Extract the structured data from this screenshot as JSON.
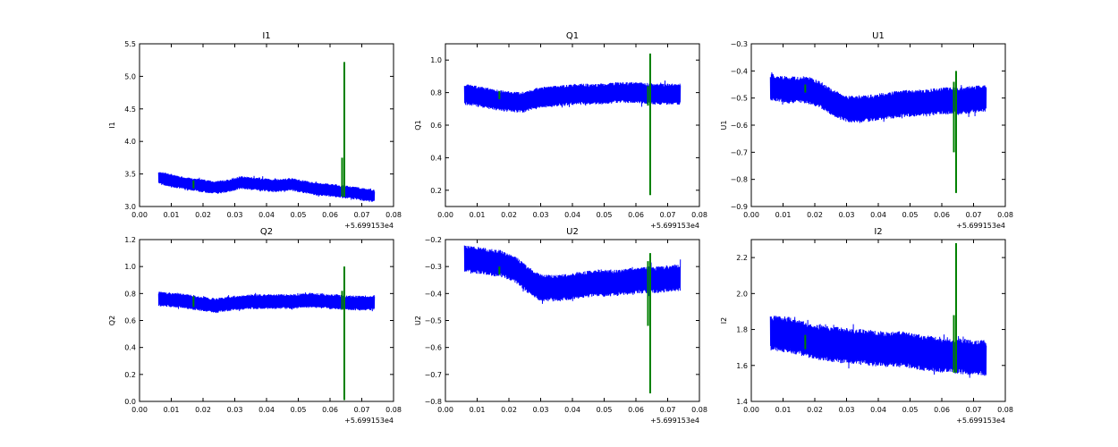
{
  "figure": {
    "background": "#ffffff",
    "signal_color": "#0000ff",
    "marker_color": "#008000",
    "x_offset_label": "+5.699153e4"
  },
  "chart_data": [
    {
      "type": "line",
      "title": "I1",
      "ylabel": "I1",
      "xlim": [
        0.0,
        0.08
      ],
      "ylim": [
        3.0,
        5.5
      ],
      "x_ticks": [
        "0.00",
        "0.01",
        "0.02",
        "0.03",
        "0.04",
        "0.05",
        "0.06",
        "0.07",
        "0.08"
      ],
      "y_ticks": [
        "3.0",
        "3.5",
        "4.0",
        "4.5",
        "5.0",
        "5.5"
      ],
      "x_offset": "+5.699153e4",
      "series": [
        {
          "color": "#0000ff",
          "x_range": [
            0.006,
            0.074
          ],
          "center": [
            [
              0.006,
              3.44
            ],
            [
              0.012,
              3.38
            ],
            [
              0.018,
              3.33
            ],
            [
              0.024,
              3.29
            ],
            [
              0.028,
              3.32
            ],
            [
              0.032,
              3.37
            ],
            [
              0.036,
              3.35
            ],
            [
              0.042,
              3.32
            ],
            [
              0.048,
              3.34
            ],
            [
              0.054,
              3.28
            ],
            [
              0.06,
              3.25
            ],
            [
              0.066,
              3.22
            ],
            [
              0.074,
              3.16
            ]
          ],
          "half_width": 0.1
        },
        {
          "color": "#008000",
          "markers": [
            {
              "x": 0.017,
              "y_min": 3.28,
              "y_max": 3.4
            },
            {
              "x": 0.0638,
              "y_min": 3.15,
              "y_max": 3.75
            },
            {
              "x": 0.0645,
              "y_min": 3.15,
              "y_max": 5.22
            }
          ]
        }
      ]
    },
    {
      "type": "line",
      "title": "Q1",
      "ylabel": "Q1",
      "xlim": [
        0.0,
        0.08
      ],
      "ylim": [
        0.1,
        1.1
      ],
      "x_ticks": [
        "0.00",
        "0.01",
        "0.02",
        "0.03",
        "0.04",
        "0.05",
        "0.06",
        "0.07",
        "0.08"
      ],
      "y_ticks": [
        "0.2",
        "0.4",
        "0.6",
        "0.8",
        "1.0"
      ],
      "x_offset": "+5.699153e4",
      "series": [
        {
          "color": "#0000ff",
          "x_range": [
            0.006,
            0.074
          ],
          "center": [
            [
              0.006,
              0.79
            ],
            [
              0.012,
              0.77
            ],
            [
              0.018,
              0.75
            ],
            [
              0.024,
              0.74
            ],
            [
              0.03,
              0.77
            ],
            [
              0.036,
              0.78
            ],
            [
              0.042,
              0.79
            ],
            [
              0.048,
              0.79
            ],
            [
              0.054,
              0.8
            ],
            [
              0.06,
              0.8
            ],
            [
              0.066,
              0.79
            ],
            [
              0.074,
              0.79
            ]
          ],
          "half_width": 0.065
        },
        {
          "color": "#008000",
          "markers": [
            {
              "x": 0.017,
              "y_min": 0.76,
              "y_max": 0.81
            },
            {
              "x": 0.0638,
              "y_min": 0.72,
              "y_max": 0.84
            },
            {
              "x": 0.0645,
              "y_min": 0.17,
              "y_max": 1.04
            }
          ]
        }
      ]
    },
    {
      "type": "line",
      "title": "U1",
      "ylabel": "U1",
      "xlim": [
        0.0,
        0.08
      ],
      "ylim": [
        -0.9,
        -0.3
      ],
      "x_ticks": [
        "0.00",
        "0.01",
        "0.02",
        "0.03",
        "0.04",
        "0.05",
        "0.06",
        "0.07",
        "0.08"
      ],
      "y_ticks": [
        "−0.9",
        "−0.8",
        "−0.7",
        "−0.6",
        "−0.5",
        "−0.4",
        "−0.3"
      ],
      "x_offset": "+5.699153e4",
      "series": [
        {
          "color": "#0000ff",
          "x_range": [
            0.006,
            0.074
          ],
          "center": [
            [
              0.006,
              -0.46
            ],
            [
              0.012,
              -0.47
            ],
            [
              0.018,
              -0.47
            ],
            [
              0.022,
              -0.49
            ],
            [
              0.026,
              -0.52
            ],
            [
              0.03,
              -0.54
            ],
            [
              0.036,
              -0.54
            ],
            [
              0.042,
              -0.53
            ],
            [
              0.048,
              -0.52
            ],
            [
              0.054,
              -0.52
            ],
            [
              0.06,
              -0.51
            ],
            [
              0.066,
              -0.51
            ],
            [
              0.074,
              -0.5
            ]
          ],
          "half_width": 0.05
        },
        {
          "color": "#008000",
          "markers": [
            {
              "x": 0.017,
              "y_min": -0.48,
              "y_max": -0.45
            },
            {
              "x": 0.0638,
              "y_min": -0.7,
              "y_max": -0.44
            },
            {
              "x": 0.0645,
              "y_min": -0.85,
              "y_max": -0.4
            }
          ]
        }
      ]
    },
    {
      "type": "line",
      "title": "Q2",
      "ylabel": "Q2",
      "xlim": [
        0.0,
        0.08
      ],
      "ylim": [
        0.0,
        1.2
      ],
      "x_ticks": [
        "0.00",
        "0.01",
        "0.02",
        "0.03",
        "0.04",
        "0.05",
        "0.06",
        "0.07",
        "0.08"
      ],
      "y_ticks": [
        "0.0",
        "0.2",
        "0.4",
        "0.6",
        "0.8",
        "1.0",
        "1.2"
      ],
      "x_offset": "+5.699153e4",
      "series": [
        {
          "color": "#0000ff",
          "x_range": [
            0.006,
            0.074
          ],
          "center": [
            [
              0.006,
              0.76
            ],
            [
              0.012,
              0.75
            ],
            [
              0.018,
              0.73
            ],
            [
              0.024,
              0.71
            ],
            [
              0.03,
              0.73
            ],
            [
              0.036,
              0.74
            ],
            [
              0.042,
              0.74
            ],
            [
              0.048,
              0.74
            ],
            [
              0.054,
              0.75
            ],
            [
              0.06,
              0.74
            ],
            [
              0.066,
              0.73
            ],
            [
              0.074,
              0.73
            ]
          ],
          "half_width": 0.055
        },
        {
          "color": "#008000",
          "markers": [
            {
              "x": 0.017,
              "y_min": 0.7,
              "y_max": 0.78
            },
            {
              "x": 0.0638,
              "y_min": 0.68,
              "y_max": 0.82
            },
            {
              "x": 0.0645,
              "y_min": 0.01,
              "y_max": 1.0
            }
          ]
        }
      ]
    },
    {
      "type": "line",
      "title": "U2",
      "ylabel": "U2",
      "xlim": [
        0.0,
        0.08
      ],
      "ylim": [
        -0.8,
        -0.2
      ],
      "x_ticks": [
        "0.00",
        "0.01",
        "0.02",
        "0.03",
        "0.04",
        "0.05",
        "0.06",
        "0.07",
        "0.08"
      ],
      "y_ticks": [
        "−0.8",
        "−0.7",
        "−0.6",
        "−0.5",
        "−0.4",
        "−0.3",
        "−0.2"
      ],
      "x_offset": "+5.699153e4",
      "series": [
        {
          "color": "#0000ff",
          "x_range": [
            0.006,
            0.074
          ],
          "center": [
            [
              0.006,
              -0.27
            ],
            [
              0.012,
              -0.28
            ],
            [
              0.018,
              -0.29
            ],
            [
              0.022,
              -0.31
            ],
            [
              0.026,
              -0.35
            ],
            [
              0.03,
              -0.38
            ],
            [
              0.036,
              -0.38
            ],
            [
              0.042,
              -0.37
            ],
            [
              0.048,
              -0.36
            ],
            [
              0.054,
              -0.36
            ],
            [
              0.06,
              -0.35
            ],
            [
              0.066,
              -0.35
            ],
            [
              0.074,
              -0.34
            ]
          ],
          "half_width": 0.05
        },
        {
          "color": "#008000",
          "markers": [
            {
              "x": 0.017,
              "y_min": -0.33,
              "y_max": -0.3
            },
            {
              "x": 0.0638,
              "y_min": -0.52,
              "y_max": -0.28
            },
            {
              "x": 0.0645,
              "y_min": -0.77,
              "y_max": -0.25
            }
          ]
        }
      ]
    },
    {
      "type": "line",
      "title": "I2",
      "ylabel": "I2",
      "xlim": [
        0.0,
        0.08
      ],
      "ylim": [
        1.4,
        2.3
      ],
      "x_ticks": [
        "0.00",
        "0.01",
        "0.02",
        "0.03",
        "0.04",
        "0.05",
        "0.06",
        "0.07",
        "0.08"
      ],
      "y_ticks": [
        "1.4",
        "1.6",
        "1.8",
        "2.0",
        "2.2"
      ],
      "x_offset": "+5.699153e4",
      "series": [
        {
          "color": "#0000ff",
          "x_range": [
            0.006,
            0.074
          ],
          "center": [
            [
              0.006,
              1.78
            ],
            [
              0.012,
              1.77
            ],
            [
              0.018,
              1.74
            ],
            [
              0.024,
              1.72
            ],
            [
              0.03,
              1.71
            ],
            [
              0.036,
              1.7
            ],
            [
              0.042,
              1.69
            ],
            [
              0.048,
              1.69
            ],
            [
              0.054,
              1.67
            ],
            [
              0.06,
              1.66
            ],
            [
              0.066,
              1.65
            ],
            [
              0.074,
              1.64
            ]
          ],
          "half_width": 0.1
        },
        {
          "color": "#008000",
          "markers": [
            {
              "x": 0.017,
              "y_min": 1.69,
              "y_max": 1.77
            },
            {
              "x": 0.0638,
              "y_min": 1.56,
              "y_max": 1.88
            },
            {
              "x": 0.0645,
              "y_min": 1.56,
              "y_max": 2.28
            }
          ]
        }
      ]
    }
  ]
}
